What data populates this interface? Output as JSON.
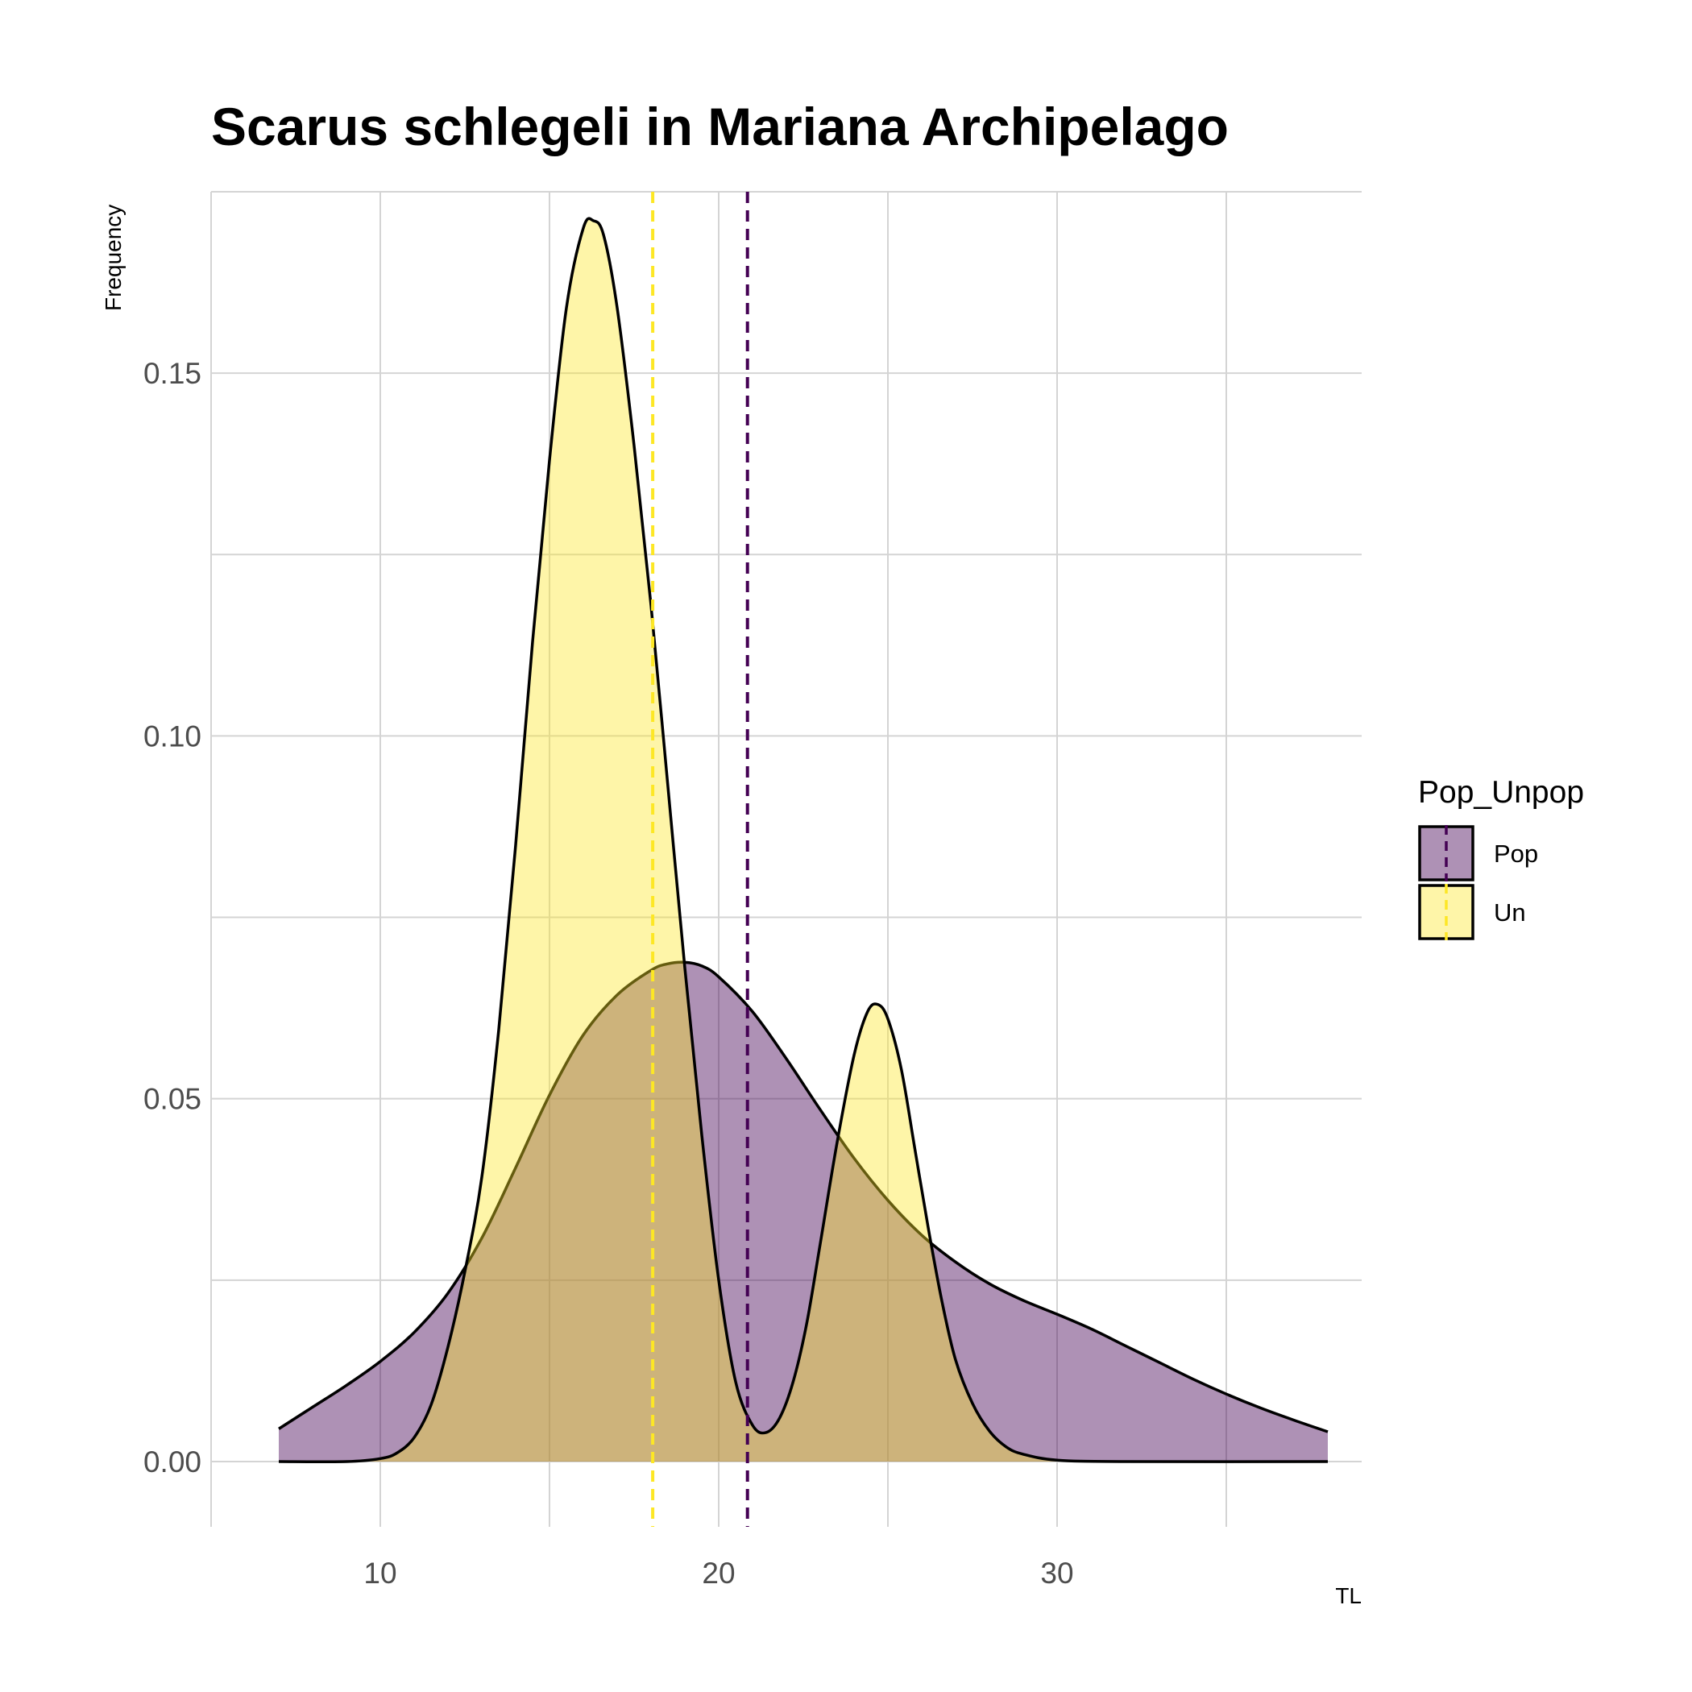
{
  "chart_data": {
    "type": "area",
    "title": "Scarus schlegeli in Mariana Archipelago",
    "xlabel": "TL",
    "ylabel": "Frequency",
    "xlim": [
      5,
      39
    ],
    "ylim": [
      -0.009,
      0.175
    ],
    "x_ticks": [
      10,
      20,
      30
    ],
    "y_ticks": [
      0.0,
      0.05,
      0.1,
      0.15
    ],
    "y_tick_labels": [
      "0.00",
      "0.05",
      "0.10",
      "0.15"
    ],
    "grid": true,
    "legend": {
      "title": "Pop_Unpop",
      "position": "right"
    },
    "series": [
      {
        "name": "Pop",
        "fill": "#440154",
        "fill_opacity": 0.43,
        "mean_line_x": 20.85,
        "mean_line_color": "#440154",
        "x": [
          7.0,
          8.0,
          9.0,
          10.0,
          11.0,
          12.0,
          13.0,
          14.0,
          15.0,
          16.0,
          17.0,
          18.0,
          18.5,
          19.0,
          19.5,
          20.0,
          21.0,
          22.0,
          23.0,
          24.0,
          25.0,
          26.0,
          27.0,
          28.0,
          29.0,
          30.0,
          31.0,
          32.0,
          33.0,
          34.0,
          35.0,
          36.0,
          37.0,
          38.0
        ],
        "y": [
          0.0045,
          0.0075,
          0.0105,
          0.0138,
          0.0178,
          0.0232,
          0.0308,
          0.0405,
          0.0505,
          0.0588,
          0.0643,
          0.0677,
          0.0686,
          0.0688,
          0.0683,
          0.0668,
          0.062,
          0.0555,
          0.0485,
          0.0418,
          0.036,
          0.0312,
          0.0275,
          0.0245,
          0.0222,
          0.0203,
          0.0183,
          0.016,
          0.0137,
          0.0114,
          0.0093,
          0.0074,
          0.0057,
          0.0041
        ]
      },
      {
        "name": "Un",
        "fill": "#FDE725",
        "fill_opacity": 0.4,
        "mean_line_x": 18.05,
        "mean_line_color": "#FDE725",
        "x": [
          7.0,
          9.0,
          10.0,
          10.5,
          11.0,
          11.5,
          12.0,
          12.5,
          13.0,
          13.5,
          14.0,
          14.5,
          15.0,
          15.5,
          16.0,
          16.3,
          16.6,
          17.0,
          17.5,
          18.0,
          18.5,
          19.0,
          19.5,
          20.0,
          20.5,
          21.0,
          21.4,
          21.8,
          22.2,
          22.6,
          23.0,
          23.5,
          24.0,
          24.4,
          24.7,
          25.0,
          25.4,
          25.8,
          26.2,
          26.6,
          27.0,
          27.5,
          28.0,
          28.5,
          29.0,
          30.0,
          32.0,
          38.0
        ],
        "y": [
          0.0,
          0.0,
          0.0004,
          0.0012,
          0.0033,
          0.0078,
          0.0158,
          0.0262,
          0.0392,
          0.0595,
          0.085,
          0.113,
          0.138,
          0.159,
          0.17,
          0.171,
          0.169,
          0.159,
          0.14,
          0.118,
          0.093,
          0.068,
          0.045,
          0.025,
          0.011,
          0.005,
          0.004,
          0.006,
          0.011,
          0.019,
          0.03,
          0.044,
          0.056,
          0.062,
          0.063,
          0.061,
          0.054,
          0.043,
          0.032,
          0.022,
          0.014,
          0.008,
          0.0042,
          0.002,
          0.001,
          0.0002,
          0.0,
          0.0
        ]
      }
    ]
  }
}
